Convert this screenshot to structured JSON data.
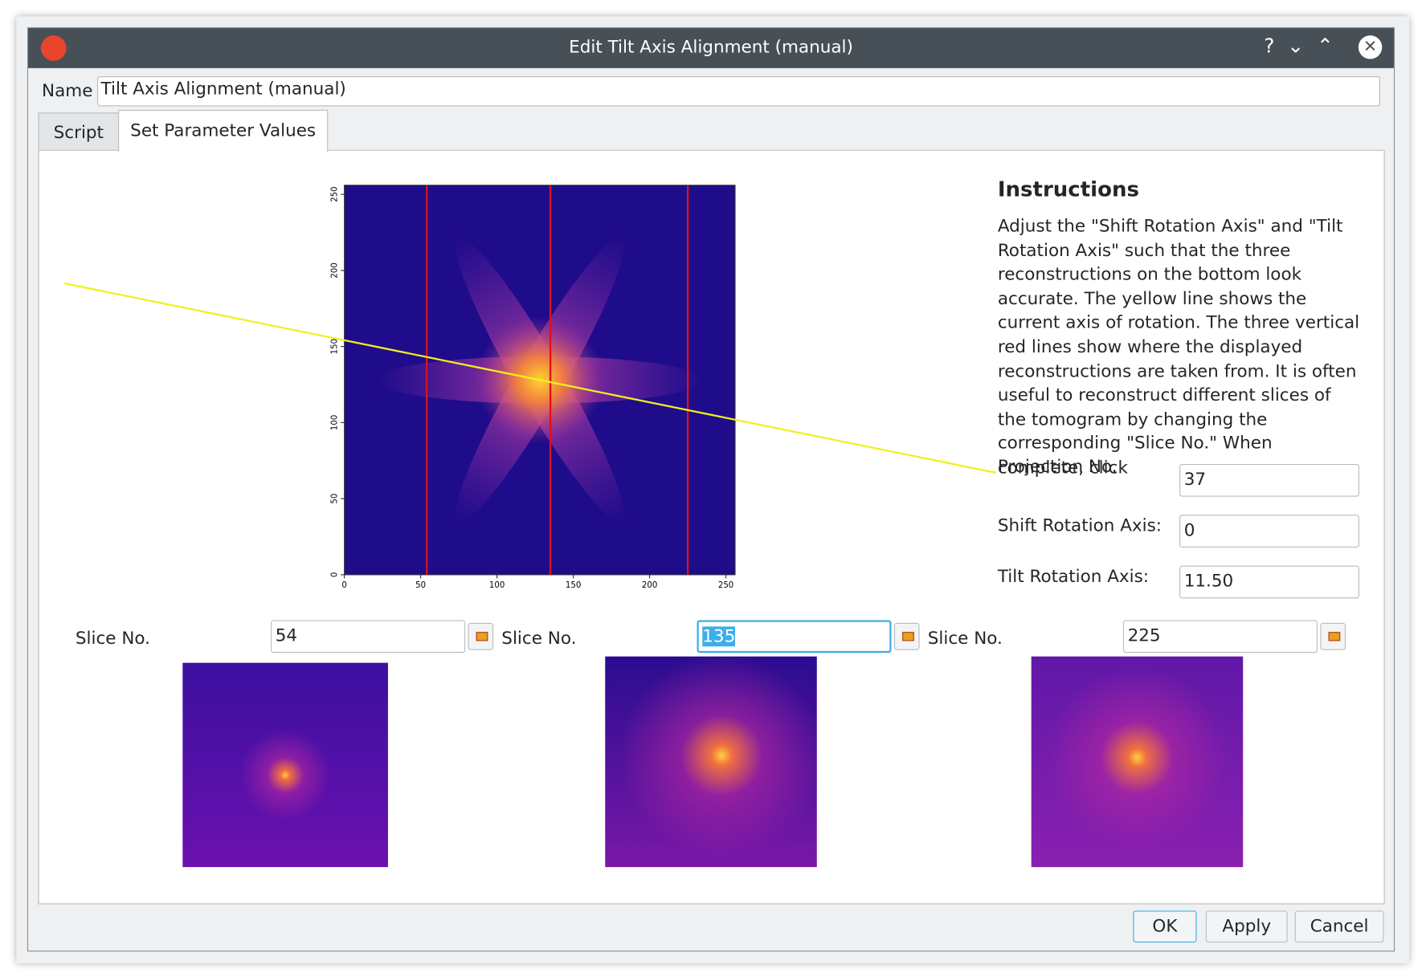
{
  "window": {
    "title": "Edit Tilt Axis Alignment (manual)"
  },
  "name": {
    "label": "Name",
    "value": "Tilt Axis Alignment (manual)"
  },
  "tabs": [
    "Script",
    "Set Parameter Values"
  ],
  "projection_plot": {
    "xlim": [
      0,
      256
    ],
    "ylim": [
      0,
      256
    ],
    "xticks": [
      0,
      50,
      100,
      150,
      200,
      250
    ],
    "yticks": [
      0,
      50,
      100,
      150,
      200,
      250
    ]
  },
  "instructions": {
    "title": "Instructions",
    "text": "Adjust the \"Shift Rotation Axis\" and \"Tilt Rotation Axis\" such that the three reconstructions on the bottom look accurate. The yellow line shows the current axis of rotation. The three vertical red lines show where the displayed reconstructions are taken from. It is often useful to reconstruct different slices of the tomogram by changing the corresponding \"Slice No.\" When complete, click"
  },
  "fields": [
    {
      "label": "Projection No.",
      "value": "37"
    },
    {
      "label": "Shift Rotation Axis:",
      "value": "0"
    },
    {
      "label": "Tilt Rotation Axis:",
      "value": "11.50"
    }
  ],
  "slices": [
    {
      "label": "Slice No.",
      "value": 54
    },
    {
      "label": "Slice No.",
      "value": 135
    },
    {
      "label": "Slice No.",
      "value": 225
    }
  ],
  "buttons": [
    "OK",
    "Apply",
    "Cancel"
  ]
}
